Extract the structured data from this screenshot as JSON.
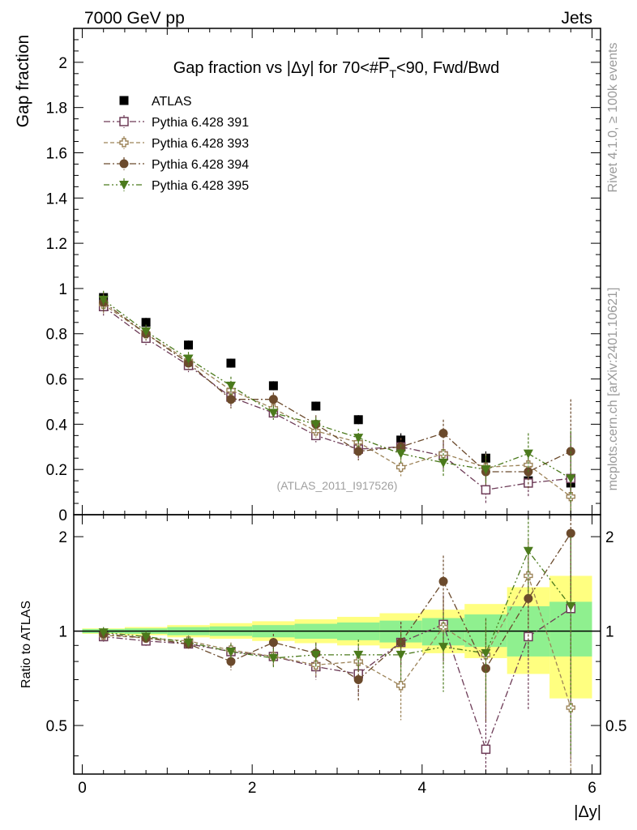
{
  "header": {
    "left": "7000 GeV pp",
    "right": "Jets"
  },
  "side_labels": {
    "rivet": "Rivet 4.1.0, ≥ 100k events",
    "mcplots": "mcplots.cern.ch [arXiv:2401.10621]"
  },
  "chart_data": [
    {
      "type": "scatter",
      "title": "Gap fraction vs |Δy| for 70<#P_T<90, Fwd/Bwd",
      "title_prefix": "Gap fraction vs |Δy| for 70<#",
      "title_p": "P",
      "title_sub": "T",
      "title_suffix": "<90, Fwd/Bwd",
      "watermark": "(ATLAS_2011_I917526)",
      "xlabel": "|Δy|",
      "ylabel": "Gap fraction",
      "xlim": [
        -0.1,
        6.1
      ],
      "ylim": [
        0,
        2.15
      ],
      "y_ticks": [
        0,
        0.2,
        0.4,
        0.6,
        0.8,
        1,
        1.2,
        1.4,
        1.6,
        1.8,
        2
      ],
      "y_tick_labels": [
        "0",
        "0.2",
        "0.4",
        "0.6",
        "0.8",
        "1",
        "1.2",
        "1.4",
        "1.6",
        "1.8",
        "2"
      ],
      "legend_position": "top-left",
      "x": [
        0.25,
        0.75,
        1.25,
        1.75,
        2.25,
        2.75,
        3.25,
        3.75,
        4.25,
        4.75,
        5.25,
        5.75
      ],
      "series": [
        {
          "name": "ATLAS",
          "color": "#000000",
          "marker": "filled-square",
          "line": "none",
          "values": [
            0.96,
            0.85,
            0.75,
            0.67,
            0.57,
            0.48,
            0.42,
            0.33,
            0.26,
            0.25,
            0.15,
            0.14
          ],
          "errors": [
            0.02,
            0.02,
            0.02,
            0.02,
            0.02,
            0.02,
            0.02,
            0.03,
            0.03,
            0.03,
            0.03,
            0.04
          ]
        },
        {
          "name": "Pythia 6.428 391",
          "color": "#6d3b57",
          "marker": "open-square",
          "line": "dash-dot",
          "values": [
            0.92,
            0.78,
            0.66,
            0.52,
            0.45,
            0.35,
            0.29,
            0.3,
            0.26,
            0.11,
            0.14,
            0.16
          ],
          "errors": [
            0.04,
            0.03,
            0.03,
            0.04,
            0.03,
            0.03,
            0.04,
            0.04,
            0.06,
            0.06,
            0.06,
            0.2
          ]
        },
        {
          "name": "Pythia 6.428 393",
          "color": "#9c8358",
          "marker": "open-cross",
          "line": "dash",
          "values": [
            0.93,
            0.8,
            0.68,
            0.55,
            0.47,
            0.37,
            0.32,
            0.21,
            0.27,
            0.21,
            0.22,
            0.08
          ],
          "errors": [
            0.04,
            0.03,
            0.03,
            0.04,
            0.03,
            0.03,
            0.04,
            0.04,
            0.06,
            0.06,
            0.06,
            0.14
          ]
        },
        {
          "name": "Pythia 6.428 394",
          "color": "#6b4a2c",
          "marker": "filled-circle",
          "line": "dash-dot",
          "values": [
            0.94,
            0.8,
            0.67,
            0.51,
            0.51,
            0.4,
            0.28,
            0.3,
            0.36,
            0.19,
            0.19,
            0.28
          ],
          "errors": [
            0.04,
            0.03,
            0.03,
            0.04,
            0.03,
            0.04,
            0.04,
            0.04,
            0.06,
            0.06,
            0.08,
            0.23
          ]
        },
        {
          "name": "Pythia 6.428 395",
          "color": "#4b7a1c",
          "marker": "filled-triangle-down",
          "line": "dash-dot-dot",
          "values": [
            0.95,
            0.81,
            0.69,
            0.57,
            0.45,
            0.4,
            0.34,
            0.27,
            0.23,
            0.2,
            0.27,
            0.16
          ],
          "errors": [
            0.04,
            0.03,
            0.03,
            0.04,
            0.03,
            0.03,
            0.04,
            0.04,
            0.06,
            0.06,
            0.09,
            0.21
          ]
        }
      ]
    },
    {
      "type": "scatter",
      "title": "",
      "xlabel": "|Δy|",
      "ylabel": "Ratio to ATLAS",
      "xlim": [
        -0.1,
        6.1
      ],
      "ylim": [
        0.35,
        2.35
      ],
      "y_ticks": [
        0.5,
        1,
        2
      ],
      "y_tick_labels": [
        "0.5",
        "1",
        "2"
      ],
      "x_ticks": [
        0,
        2,
        4,
        6
      ],
      "x_tick_labels": [
        "0",
        "2",
        "4",
        "6"
      ],
      "x": [
        0.25,
        0.75,
        1.25,
        1.75,
        2.25,
        2.75,
        3.25,
        3.75,
        4.25,
        4.75,
        5.25,
        5.75
      ],
      "bin_edges": [
        0,
        0.5,
        1,
        1.5,
        2,
        2.5,
        3,
        3.5,
        4,
        4.5,
        5,
        5.5,
        6
      ],
      "band_green_lo": [
        0.985,
        0.98,
        0.97,
        0.965,
        0.955,
        0.945,
        0.935,
        0.92,
        0.9,
        0.89,
        0.83,
        0.83
      ],
      "band_green_hi": [
        1.015,
        1.02,
        1.03,
        1.035,
        1.045,
        1.055,
        1.065,
        1.08,
        1.1,
        1.13,
        1.2,
        1.24
      ],
      "band_yellow_lo": [
        0.98,
        0.97,
        0.955,
        0.945,
        0.93,
        0.915,
        0.9,
        0.88,
        0.85,
        0.82,
        0.73,
        0.61
      ],
      "band_yellow_hi": [
        1.02,
        1.03,
        1.045,
        1.06,
        1.075,
        1.09,
        1.11,
        1.14,
        1.17,
        1.22,
        1.38,
        1.5
      ],
      "series": [
        {
          "name": "Pythia 6.428 391",
          "color": "#6d3b57",
          "marker": "open-square",
          "line": "dash-dot",
          "values": [
            0.96,
            0.93,
            0.91,
            0.86,
            0.83,
            0.77,
            0.73,
            0.92,
            1.05,
            0.42,
            0.96,
            1.18
          ],
          "errors": [
            0.04,
            0.04,
            0.04,
            0.05,
            0.06,
            0.07,
            0.1,
            0.15,
            0.25,
            0.2,
            0.4,
            0.8
          ]
        },
        {
          "name": "Pythia 6.428 393",
          "color": "#9c8358",
          "marker": "open-cross",
          "line": "dash",
          "values": [
            0.97,
            0.95,
            0.93,
            0.87,
            0.83,
            0.78,
            0.8,
            0.67,
            1.03,
            0.84,
            1.5,
            0.57
          ],
          "errors": [
            0.04,
            0.04,
            0.04,
            0.05,
            0.06,
            0.07,
            0.1,
            0.15,
            0.25,
            0.25,
            0.45,
            0.5
          ]
        },
        {
          "name": "Pythia 6.428 394",
          "color": "#6b4a2c",
          "marker": "filled-circle",
          "line": "dash-dot",
          "values": [
            0.98,
            0.95,
            0.91,
            0.8,
            0.92,
            0.85,
            0.7,
            0.92,
            1.44,
            0.76,
            1.27,
            2.05
          ],
          "errors": [
            0.04,
            0.04,
            0.04,
            0.05,
            0.06,
            0.07,
            0.1,
            0.15,
            0.3,
            0.25,
            0.45,
            0.8
          ]
        },
        {
          "name": "Pythia 6.428 395",
          "color": "#4b7a1c",
          "marker": "filled-triangle-down",
          "line": "dash-dot-dot",
          "values": [
            0.99,
            0.96,
            0.92,
            0.86,
            0.82,
            0.84,
            0.84,
            0.84,
            0.89,
            0.85,
            1.8,
            1.2
          ],
          "errors": [
            0.04,
            0.04,
            0.04,
            0.05,
            0.06,
            0.07,
            0.1,
            0.15,
            0.25,
            0.25,
            0.5,
            0.8
          ]
        }
      ]
    }
  ]
}
